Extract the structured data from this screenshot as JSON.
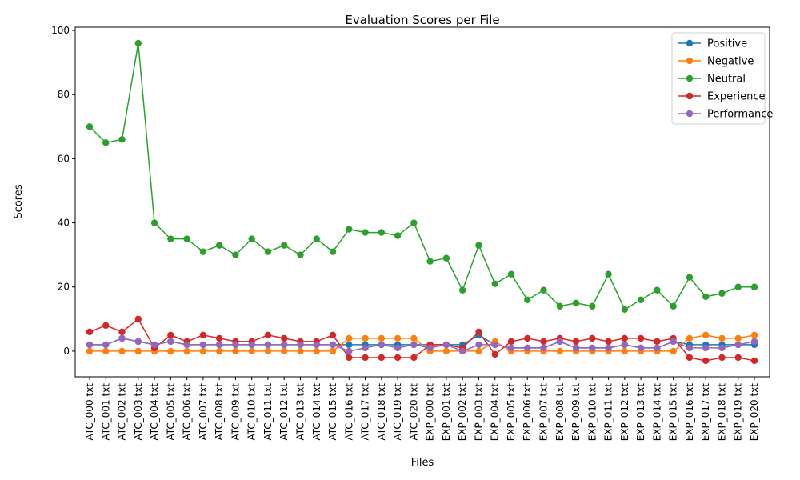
{
  "chart_data": {
    "type": "line",
    "title": "Evaluation Scores per File",
    "xlabel": "Files",
    "ylabel": "Scores",
    "ylim": [
      -8,
      101
    ],
    "yticks": [
      0,
      20,
      40,
      60,
      80,
      100
    ],
    "legend_position": "top-right",
    "grid": false,
    "categories": [
      "ATC_000.txt",
      "ATC_001.txt",
      "ATC_002.txt",
      "ATC_003.txt",
      "ATC_004.txt",
      "ATC_005.txt",
      "ATC_006.txt",
      "ATC_007.txt",
      "ATC_008.txt",
      "ATC_009.txt",
      "ATC_010.txt",
      "ATC_011.txt",
      "ATC_012.txt",
      "ATC_013.txt",
      "ATC_014.txt",
      "ATC_015.txt",
      "ATC_016.txt",
      "ATC_017.txt",
      "ATC_018.txt",
      "ATC_019.txt",
      "ATC_020.txt",
      "EXP_000.txt",
      "EXP_001.txt",
      "EXP_002.txt",
      "EXP_003.txt",
      "EXP_004.txt",
      "EXP_005.txt",
      "EXP_006.txt",
      "EXP_007.txt",
      "EXP_008.txt",
      "EXP_009.txt",
      "EXP_010.txt",
      "EXP_011.txt",
      "EXP_012.txt",
      "EXP_013.txt",
      "EXP_014.txt",
      "EXP_015.txt",
      "EXP_016.txt",
      "EXP_017.txt",
      "EXP_018.txt",
      "EXP_019.txt",
      "EXP_020.txt"
    ],
    "series": [
      {
        "name": "Positive",
        "color": "#1f77b4",
        "values": [
          2,
          2,
          4,
          3,
          2,
          3,
          2,
          2,
          2,
          2,
          2,
          2,
          2,
          2,
          2,
          2,
          2,
          2,
          2,
          2,
          2,
          2,
          2,
          2,
          5,
          2,
          1,
          1,
          1,
          3,
          1,
          1,
          1,
          2,
          1,
          1,
          3,
          2,
          2,
          2,
          2,
          2
        ]
      },
      {
        "name": "Negative",
        "color": "#ff7f0e",
        "values": [
          0,
          0,
          0,
          0,
          0,
          0,
          0,
          0,
          0,
          0,
          0,
          0,
          0,
          0,
          0,
          0,
          4,
          4,
          4,
          4,
          4,
          0,
          0,
          0,
          0,
          3,
          0,
          0,
          0,
          0,
          0,
          0,
          0,
          0,
          0,
          0,
          0,
          4,
          5,
          4,
          4,
          5
        ]
      },
      {
        "name": "Neutral",
        "color": "#2ca02c",
        "values": [
          70,
          65,
          66,
          96,
          40,
          35,
          35,
          31,
          33,
          30,
          35,
          31,
          33,
          30,
          35,
          31,
          38,
          37,
          37,
          36,
          40,
          28,
          29,
          19,
          33,
          21,
          24,
          16,
          19,
          14,
          15,
          14,
          24,
          13,
          16,
          19,
          14,
          23,
          17,
          18,
          20,
          20
        ]
      },
      {
        "name": "Experience",
        "color": "#d62728",
        "values": [
          6,
          8,
          6,
          10,
          1,
          5,
          3,
          5,
          4,
          3,
          3,
          5,
          4,
          3,
          3,
          5,
          -2,
          -2,
          -2,
          -2,
          -2,
          2,
          2,
          1,
          6,
          -1,
          3,
          4,
          3,
          4,
          3,
          4,
          3,
          4,
          4,
          3,
          4,
          -2,
          -3,
          -2,
          -2,
          -3
        ]
      },
      {
        "name": "Performance",
        "color": "#9467bd",
        "values": [
          2,
          2,
          4,
          3,
          2,
          3,
          2,
          2,
          2,
          2,
          2,
          2,
          2,
          2,
          2,
          2,
          0,
          1,
          2,
          1,
          2,
          1,
          2,
          0,
          2,
          2,
          1,
          1,
          1,
          3,
          1,
          1,
          1,
          2,
          1,
          1,
          3,
          1,
          1,
          1,
          2,
          3
        ]
      }
    ]
  }
}
